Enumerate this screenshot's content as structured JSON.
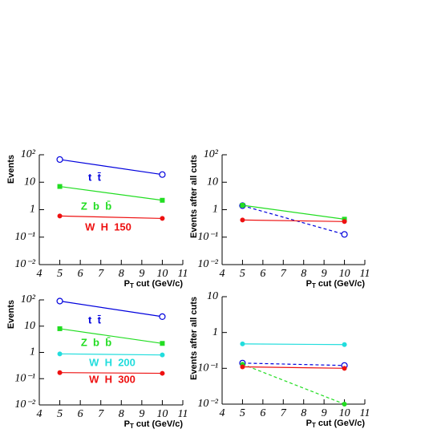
{
  "chart_data": [
    {
      "type": "line",
      "ylabel": "Events",
      "xlabel": [
        "P",
        "T",
        " cut (GeV/c)"
      ],
      "log_y": true,
      "xlim": [
        4,
        11
      ],
      "xticks": [
        4,
        5,
        6,
        7,
        8,
        9,
        10,
        11
      ],
      "ylim": [
        0.01,
        100
      ],
      "yticks": [
        {
          "value": 0.01,
          "label": "10⁻²"
        },
        {
          "value": 0.1,
          "label": "10⁻¹"
        },
        1,
        10,
        {
          "value": 100,
          "label": "10²"
        }
      ],
      "x": [
        5,
        10
      ],
      "series": [
        {
          "name": "t  t̄",
          "color": "#0000dd",
          "marker": "circle-open",
          "values": [
            67,
            19
          ]
        },
        {
          "name": "Z  b  b̄",
          "color": "#22dd22",
          "marker": "square",
          "values": [
            7,
            2.2
          ]
        },
        {
          "name": "W  H  150",
          "color": "#ee1111",
          "marker": "circle",
          "values": [
            0.59,
            0.48
          ]
        }
      ]
    },
    {
      "type": "line",
      "ylabel": "Events after all cuts",
      "xlabel": [
        "P",
        "T",
        " cut (GeV/c)"
      ],
      "log_y": true,
      "xlim": [
        4,
        11
      ],
      "xticks": [
        4,
        5,
        6,
        7,
        8,
        9,
        10,
        11
      ],
      "ylim": [
        0.01,
        100
      ],
      "yticks": [
        {
          "value": 0.01,
          "label": "10⁻²"
        },
        {
          "value": 0.1,
          "label": "10⁻¹"
        },
        1,
        10,
        {
          "value": 100,
          "label": "10²"
        }
      ],
      "x": [
        5,
        10
      ],
      "series": [
        {
          "color": "#0000dd",
          "marker": "circle-open",
          "dash": true,
          "values": [
            1.4,
            0.126
          ]
        },
        {
          "color": "#22dd22",
          "marker": "square",
          "values": [
            1.45,
            0.45
          ]
        },
        {
          "color": "#ee1111",
          "marker": "circle",
          "values": [
            0.42,
            0.37
          ]
        }
      ]
    },
    {
      "type": "line",
      "ylabel": "Events",
      "xlabel": [
        "P",
        "T",
        " cut (GeV/c)"
      ],
      "log_y": true,
      "xlim": [
        4,
        11
      ],
      "xticks": [
        4,
        5,
        6,
        7,
        8,
        9,
        10,
        11
      ],
      "ylim": [
        0.01,
        100
      ],
      "yticks": [
        {
          "value": 0.01,
          "label": "10⁻²"
        },
        {
          "value": 0.1,
          "label": "10⁻¹"
        },
        1,
        10,
        {
          "value": 100,
          "label": "10²"
        }
      ],
      "x": [
        5,
        10
      ],
      "series": [
        {
          "name": "t  t̄",
          "color": "#0000dd",
          "marker": "circle-open",
          "values": [
            90,
            23
          ]
        },
        {
          "name": "Z  b  b̄",
          "color": "#22dd22",
          "marker": "square",
          "values": [
            8,
            2.2
          ]
        },
        {
          "name": "W  H  200",
          "color": "#22dddd",
          "marker": "circle",
          "values": [
            0.88,
            0.8
          ]
        },
        {
          "name": "W  H  300",
          "color": "#ee1111",
          "marker": "circle",
          "values": [
            0.17,
            0.16
          ]
        }
      ]
    },
    {
      "type": "line",
      "ylabel": "Events after all cuts",
      "xlabel": [
        "P",
        "T",
        " cut (GeV/c)"
      ],
      "log_y": true,
      "xlim": [
        4,
        11
      ],
      "xticks": [
        4,
        5,
        6,
        7,
        8,
        9,
        10,
        11
      ],
      "ylim": [
        0.01,
        10
      ],
      "yticks": [
        {
          "value": 0.01,
          "label": "10⁻²"
        },
        {
          "value": 0.1,
          "label": "10⁻¹"
        },
        1,
        10
      ],
      "x": [
        5,
        10
      ],
      "series": [
        {
          "color": "#22dddd",
          "marker": "circle",
          "values": [
            0.48,
            0.46
          ]
        },
        {
          "color": "#0000dd",
          "marker": "circle-open",
          "dash": true,
          "values": [
            0.14,
            0.12
          ]
        },
        {
          "color": "#22dd22",
          "marker": "circle",
          "dash": true,
          "values": [
            0.13,
            0.01
          ]
        },
        {
          "color": "#ee1111",
          "marker": "circle",
          "values": [
            0.11,
            0.1
          ]
        }
      ]
    }
  ]
}
